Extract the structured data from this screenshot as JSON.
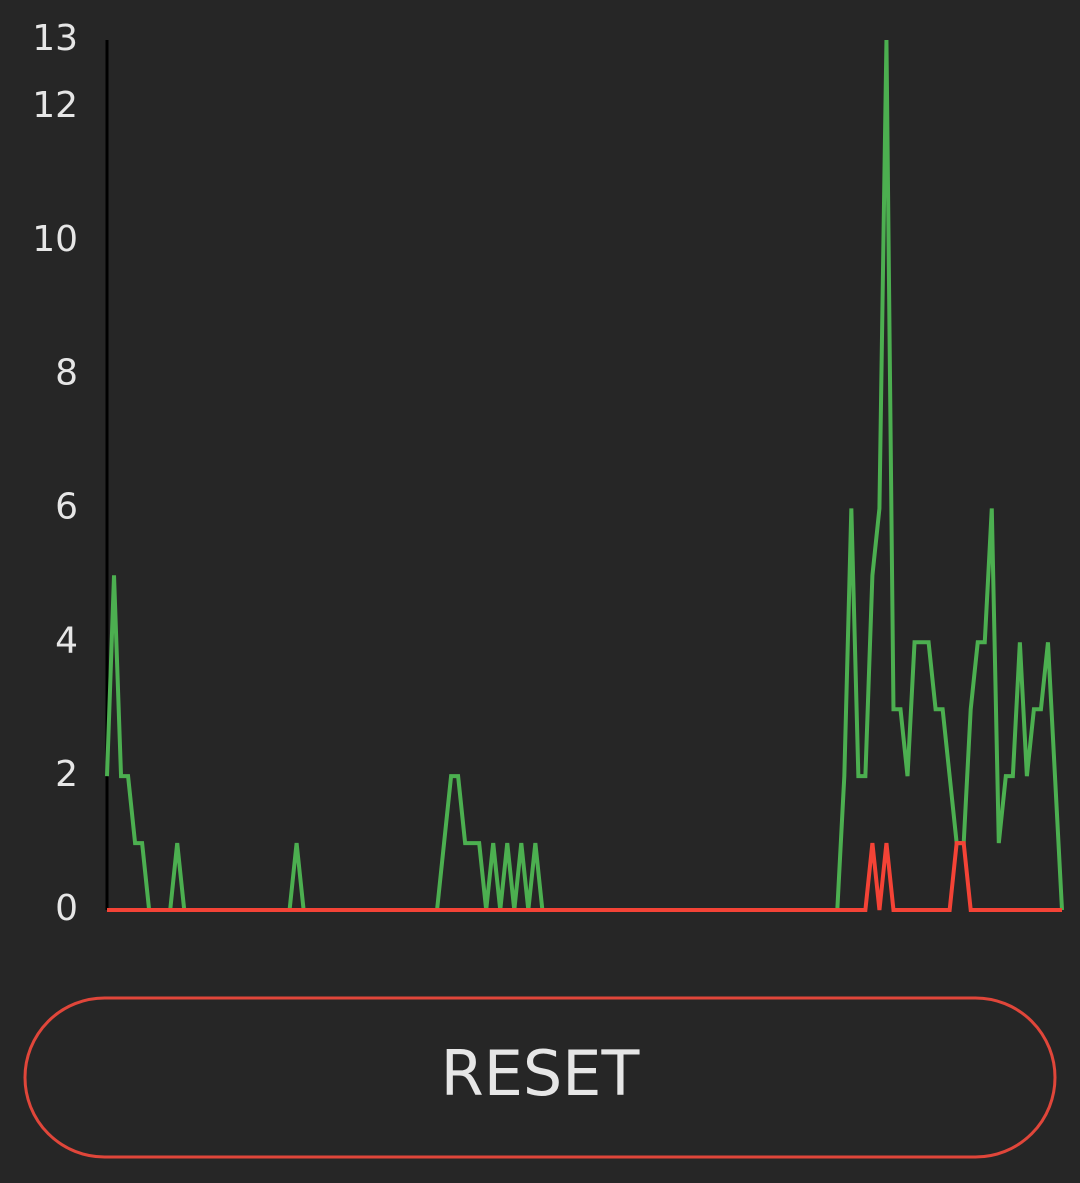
{
  "chart_data": {
    "type": "line",
    "categories": [
      null,
      null,
      null,
      null,
      null,
      null,
      null,
      null,
      null,
      null,
      null,
      null,
      null,
      null,
      null,
      null,
      null,
      null,
      null,
      null,
      null,
      null,
      null,
      null,
      null,
      null,
      null,
      null,
      null,
      null,
      null,
      null,
      null,
      null,
      null,
      null,
      null,
      null,
      null,
      null,
      null,
      null,
      null,
      null,
      null,
      null,
      null,
      null,
      null,
      null,
      null,
      null,
      null,
      null,
      null,
      null,
      null,
      null,
      null,
      null,
      null,
      null,
      null,
      null,
      null,
      null,
      null,
      null,
      null,
      null,
      null,
      null,
      null,
      null,
      null,
      null,
      null,
      null,
      null,
      null,
      null,
      null,
      null,
      null,
      null,
      null,
      null,
      null,
      null,
      null,
      null,
      null,
      null,
      null,
      null,
      null,
      null,
      null,
      null,
      null,
      null,
      null,
      null,
      null,
      null,
      null,
      null,
      null,
      null,
      null,
      null,
      null,
      null,
      null,
      null,
      null,
      null,
      null,
      null,
      null,
      null,
      null,
      null,
      null,
      null,
      null,
      null,
      null,
      null,
      null,
      null,
      null,
      null,
      null,
      null,
      null,
      null
    ],
    "series": [
      {
        "color": "#4caf50",
        "values": [
          2,
          5,
          2,
          2,
          1,
          1,
          0,
          0,
          0,
          0,
          1,
          0,
          0,
          0,
          0,
          0,
          0,
          0,
          0,
          0,
          0,
          0,
          0,
          0,
          0,
          0,
          0,
          1,
          0,
          0,
          0,
          0,
          0,
          0,
          0,
          0,
          0,
          0,
          0,
          0,
          0,
          0,
          0,
          0,
          0,
          0,
          0,
          0,
          1,
          2,
          2,
          1,
          1,
          1,
          0,
          1,
          0,
          1,
          0,
          1,
          0,
          1,
          0,
          0,
          0,
          0,
          0,
          0,
          0,
          0,
          0,
          0,
          0,
          0,
          0,
          0,
          0,
          0,
          0,
          0,
          0,
          0,
          0,
          0,
          0,
          0,
          0,
          0,
          0,
          0,
          0,
          0,
          0,
          0,
          0,
          0,
          0,
          0,
          0,
          0,
          0,
          0,
          0,
          0,
          0,
          2,
          6,
          2,
          2,
          5,
          6,
          13,
          3,
          3,
          2,
          4,
          4,
          4,
          3,
          3,
          2,
          1,
          1,
          3,
          4,
          4,
          6,
          1,
          2,
          2,
          4,
          2,
          3,
          3,
          4,
          2,
          0
        ]
      },
      {
        "color": "#f44336",
        "values": [
          0,
          0,
          0,
          0,
          0,
          0,
          0,
          0,
          0,
          0,
          0,
          0,
          0,
          0,
          0,
          0,
          0,
          0,
          0,
          0,
          0,
          0,
          0,
          0,
          0,
          0,
          0,
          0,
          0,
          0,
          0,
          0,
          0,
          0,
          0,
          0,
          0,
          0,
          0,
          0,
          0,
          0,
          0,
          0,
          0,
          0,
          0,
          0,
          0,
          0,
          0,
          0,
          0,
          0,
          0,
          0,
          0,
          0,
          0,
          0,
          0,
          0,
          0,
          0,
          0,
          0,
          0,
          0,
          0,
          0,
          0,
          0,
          0,
          0,
          0,
          0,
          0,
          0,
          0,
          0,
          0,
          0,
          0,
          0,
          0,
          0,
          0,
          0,
          0,
          0,
          0,
          0,
          0,
          0,
          0,
          0,
          0,
          0,
          0,
          0,
          0,
          0,
          0,
          0,
          0,
          0,
          0,
          0,
          0,
          1,
          0,
          1,
          0,
          0,
          0,
          0,
          0,
          0,
          0,
          0,
          0,
          1,
          1,
          0,
          0,
          0,
          0,
          0,
          0,
          0,
          0,
          0,
          0,
          0,
          0,
          0,
          0
        ]
      }
    ],
    "ylim": [
      0,
      13
    ],
    "yticks": [
      0,
      2,
      4,
      6,
      8,
      10,
      12,
      13
    ],
    "grid": false
  },
  "button": {
    "label": "RESET"
  }
}
